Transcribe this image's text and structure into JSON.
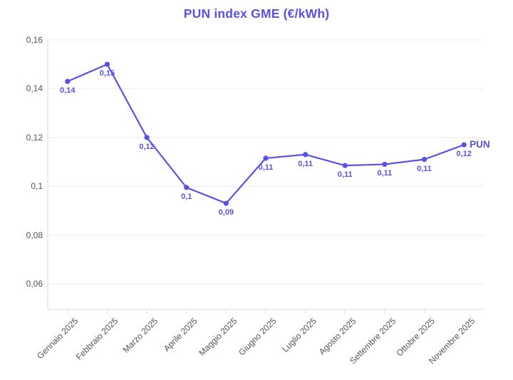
{
  "chart_data": {
    "type": "line",
    "title": "PUN index GME (€/kWh)",
    "categories": [
      "Gennaio 2025",
      "Febbraio 2025",
      "Marzo 2025",
      "Aprile 2025",
      "Maggio 2025",
      "Giugno 2025",
      "Luglio 2025",
      "Agosto 2025",
      "Settembre 2025",
      "Ottobre 2025",
      "Novembre 2025"
    ],
    "series": [
      {
        "name": "PUN",
        "values": [
          0.143,
          0.15,
          0.12,
          0.0995,
          0.093,
          0.1115,
          0.113,
          0.1085,
          0.109,
          0.111,
          0.117
        ],
        "point_labels": [
          "0,14",
          "0,15",
          "0,12",
          "0,1",
          "0,09",
          "0,11",
          "0,11",
          "0,11",
          "0,11",
          "0,11",
          "0,12"
        ]
      }
    ],
    "y_ticks": [
      {
        "value": 0.16,
        "label": "0,16"
      },
      {
        "value": 0.14,
        "label": "0,14"
      },
      {
        "value": 0.12,
        "label": "0,12"
      },
      {
        "value": 0.1,
        "label": "0,1"
      },
      {
        "value": 0.08,
        "label": "0,08"
      },
      {
        "value": 0.06,
        "label": "0,06"
      }
    ],
    "ylim": [
      0.0495,
      0.16
    ],
    "xlabel": "",
    "ylabel": "",
    "grid": "horizontal",
    "legend_position": "end-of-line",
    "colors": {
      "accent": "#5a52e6",
      "grid": "#f1f1f1",
      "axis": "#e7e7e7",
      "tick_text": "#545454",
      "background": "#ffffff"
    }
  }
}
